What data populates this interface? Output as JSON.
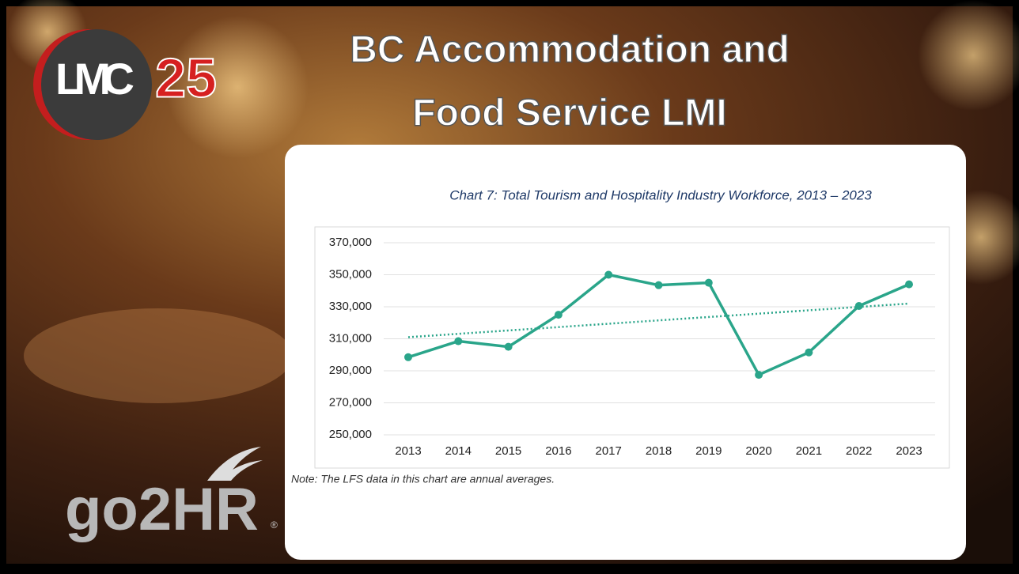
{
  "slide": {
    "title": [
      "BC Accommodation and",
      "Food Service LMI"
    ],
    "logo_lmc": {
      "text": "LMC",
      "number": "25"
    },
    "logo_go2hr": {
      "text": "go2HR",
      "mark": "®"
    }
  },
  "chart_data": {
    "type": "line",
    "title": "Chart 7: Total Tourism and Hospitality Industry Workforce, 2013 – 2023",
    "note": "Note: The LFS data in this chart are annual averages.",
    "categories": [
      "2013",
      "2014",
      "2015",
      "2016",
      "2017",
      "2018",
      "2019",
      "2020",
      "2021",
      "2022",
      "2023"
    ],
    "series": [
      {
        "color": "#2aa58a",
        "values": [
          298500,
          308500,
          305000,
          325000,
          350000,
          343500,
          345000,
          287500,
          301500,
          330500,
          344000
        ]
      }
    ],
    "trendline": {
      "values": [
        311000,
        332000
      ],
      "color": "#2aa58a",
      "style": "dotted"
    },
    "ylim": [
      250000,
      370000
    ],
    "yticks": [
      {
        "value": 250000,
        "label": "250,000"
      },
      {
        "value": 270000,
        "label": "270,000"
      },
      {
        "value": 290000,
        "label": "290,000"
      },
      {
        "value": 310000,
        "label": "310,000"
      },
      {
        "value": 330000,
        "label": "330,000"
      },
      {
        "value": 350000,
        "label": "350,000"
      },
      {
        "value": 370000,
        "label": "370,000"
      }
    ],
    "grid": true
  }
}
